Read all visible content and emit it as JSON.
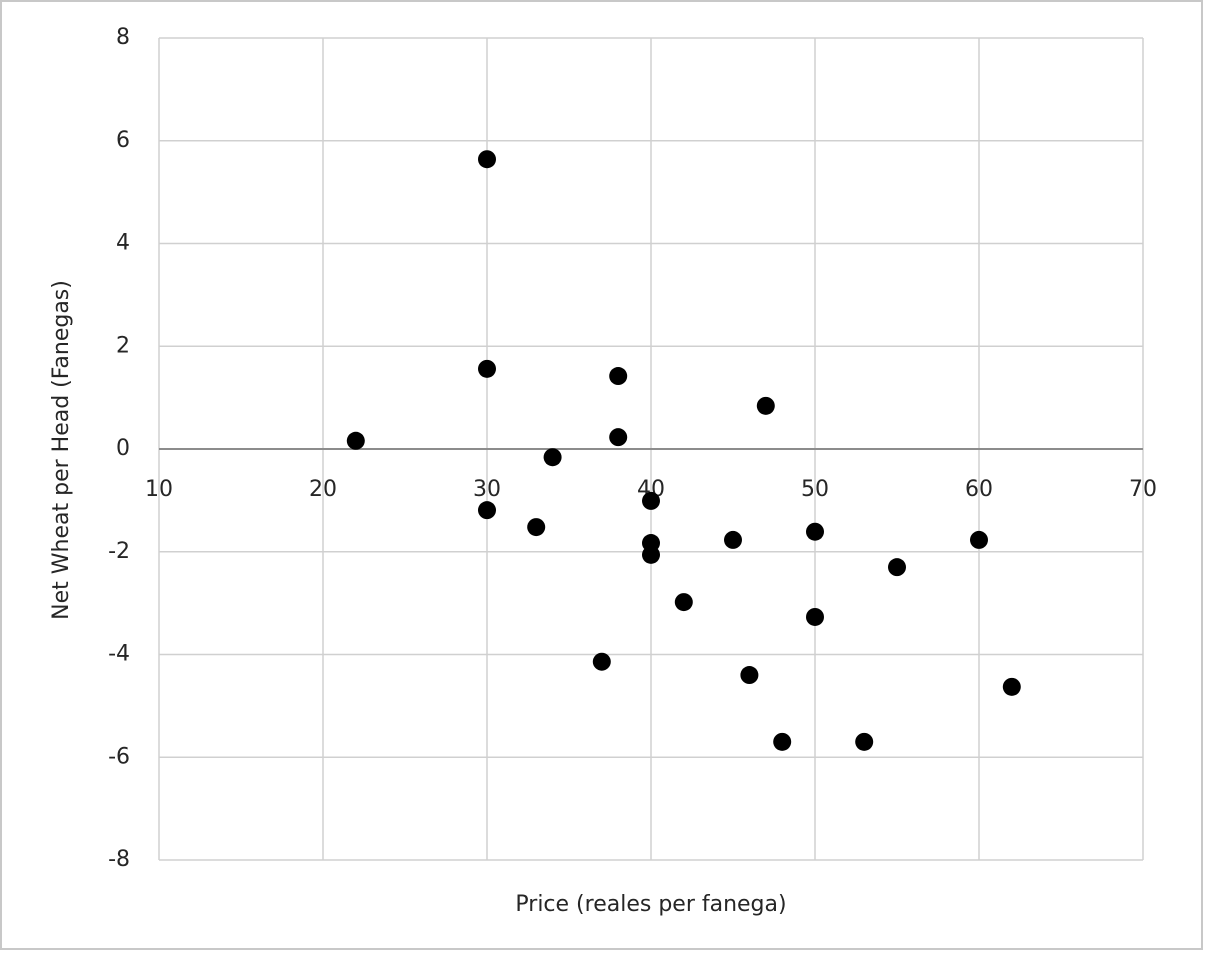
{
  "chart_data": {
    "type": "scatter",
    "x_label": "Price (reales per fanega)",
    "y_label": "Net  Wheat per Head (Fanegas)",
    "x": [
      30,
      30,
      22,
      38,
      38,
      47,
      34,
      40,
      30,
      33,
      40,
      40,
      45,
      50,
      60,
      55,
      42,
      50,
      37,
      46,
      62,
      48,
      53
    ],
    "values": [
      5.64,
      1.56,
      0.16,
      1.42,
      0.23,
      0.84,
      -0.16,
      -1.01,
      -1.19,
      -1.52,
      -1.83,
      -2.06,
      -1.77,
      -1.61,
      -1.77,
      -2.3,
      -2.98,
      -3.27,
      -4.14,
      -4.4,
      -4.63,
      -5.7,
      -5.7
    ],
    "color": "#000000",
    "xlim": [
      10,
      70
    ],
    "xticks": [
      10,
      20,
      30,
      40,
      50,
      60,
      70
    ],
    "ylim": [
      -8,
      8
    ],
    "yticks": [
      -8,
      -6,
      -4,
      -2,
      0,
      2,
      4,
      6,
      8
    ],
    "grid": true
  }
}
